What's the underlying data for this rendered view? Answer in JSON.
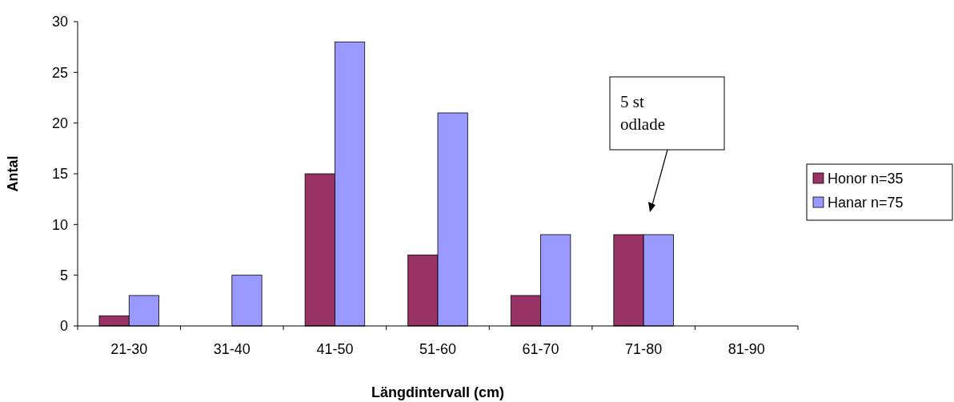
{
  "chart_data": {
    "type": "bar",
    "xlabel": "Längdintervall (cm)",
    "ylabel": "Antal",
    "categories": [
      "21-30",
      "31-40",
      "41-50",
      "51-60",
      "61-70",
      "71-80",
      "81-90"
    ],
    "series": [
      {
        "name": "Honor n=35",
        "color": "#993366",
        "values": [
          1,
          0,
          15,
          7,
          3,
          9,
          0
        ]
      },
      {
        "name": "Hanar n=75",
        "color": "#9999ff",
        "values": [
          3,
          5,
          28,
          21,
          9,
          9,
          0
        ]
      }
    ],
    "ylim": [
      0,
      30
    ],
    "yticks": [
      0,
      5,
      10,
      15,
      20,
      25,
      30
    ],
    "grid": false,
    "legend": "right",
    "annotations": [
      "5 st\nodlade"
    ]
  }
}
